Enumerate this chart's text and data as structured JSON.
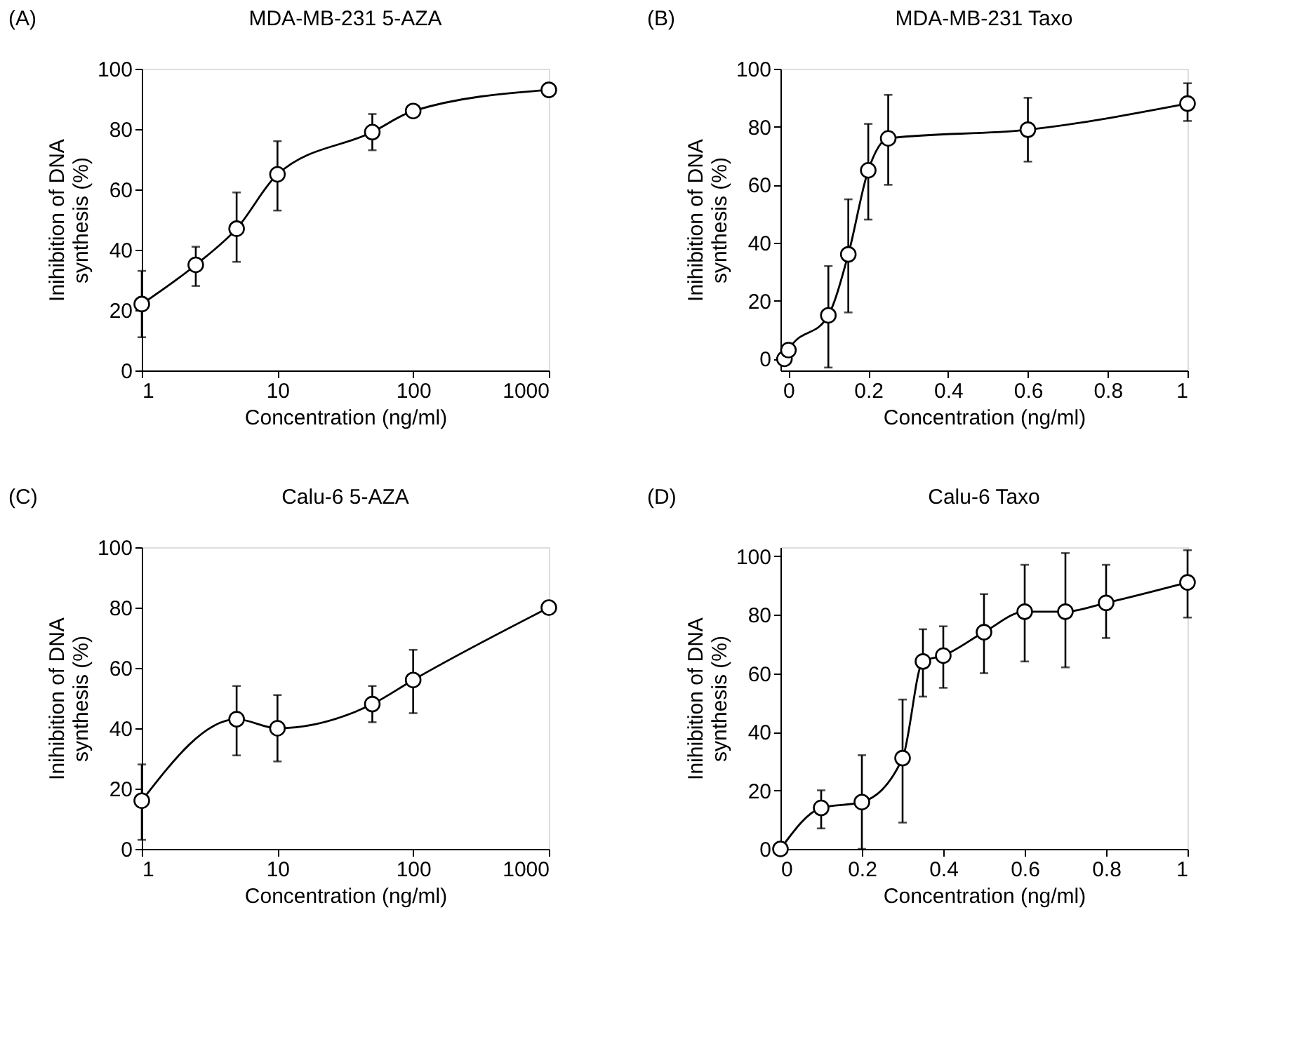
{
  "chart_data": [
    {
      "type": "line",
      "title": "MDA-MB-231 5-AZA",
      "annotations": [
        "(A)"
      ],
      "xlabel": "Concentration (ng/ml)",
      "ylabel": "Inihibition of DNA\nsynthesis (%)",
      "log": "x",
      "marker": "circle",
      "grid": false,
      "x": [
        1,
        2.5,
        5,
        10,
        50,
        100,
        1000
      ],
      "series": [
        {
          "color": "#000000",
          "values": [
            22,
            35,
            47,
            65,
            79,
            86,
            93
          ],
          "errors": [
            [
              11,
              33
            ],
            [
              28,
              41
            ],
            [
              36,
              59
            ],
            [
              53,
              76
            ],
            [
              73,
              85
            ],
            [
              84,
              88
            ],
            null
          ]
        }
      ],
      "xlim": [
        1,
        1000
      ],
      "xticks": [
        1,
        10,
        100,
        1000
      ],
      "ylim": [
        0,
        100
      ],
      "yticks": [
        0,
        20,
        40,
        60,
        80,
        100
      ]
    },
    {
      "type": "line",
      "title": "MDA-MB-231 Taxo",
      "annotations": [
        "(B)"
      ],
      "xlabel": "Concentration (ng/ml)",
      "ylabel": "Inihibition of DNA\nsynthesis (%)",
      "marker": "circle",
      "grid": false,
      "x": [
        -0.01,
        0,
        0.1,
        0.15,
        0.2,
        0.25,
        0.6,
        1
      ],
      "series": [
        {
          "color": "#000000",
          "values": [
            0,
            3,
            15,
            36,
            65,
            76,
            79,
            88
          ],
          "errors": [
            null,
            null,
            [
              -3,
              32
            ],
            [
              16,
              55
            ],
            [
              48,
              81
            ],
            [
              60,
              91
            ],
            [
              68,
              90
            ],
            [
              82,
              95
            ]
          ]
        }
      ],
      "xlim": [
        -0.02,
        1
      ],
      "xticks": [
        0,
        0.2,
        0.4,
        0.6,
        0.8,
        1
      ],
      "ylim": [
        -4,
        100
      ],
      "yticks": [
        0,
        20,
        40,
        60,
        80,
        100
      ]
    },
    {
      "type": "line",
      "title": "Calu-6 5-AZA",
      "annotations": [
        "(C)"
      ],
      "xlabel": "Concentration (ng/ml)",
      "ylabel": "Inihibition of DNA\nsynthesis (%)",
      "log": "x",
      "marker": "circle",
      "grid": false,
      "x": [
        1,
        5,
        10,
        50,
        100,
        1000
      ],
      "series": [
        {
          "color": "#000000",
          "values": [
            16,
            43,
            40,
            48,
            56,
            80
          ],
          "errors": [
            [
              3,
              28
            ],
            [
              31,
              54
            ],
            [
              29,
              51
            ],
            [
              42,
              54
            ],
            [
              45,
              66
            ],
            null
          ]
        }
      ],
      "xlim": [
        1,
        1000
      ],
      "xticks": [
        1,
        10,
        100,
        1000
      ],
      "ylim": [
        0,
        100
      ],
      "yticks": [
        0,
        20,
        40,
        60,
        80,
        100
      ]
    },
    {
      "type": "line",
      "title": "Calu-6 Taxo",
      "annotations": [
        "(D)"
      ],
      "xlabel": "Concentration (ng/ml)",
      "ylabel": "Inihibition of DNA\nsynthesis (%)",
      "marker": "circle",
      "grid": false,
      "x": [
        0,
        0.1,
        0.2,
        0.3,
        0.35,
        0.4,
        0.5,
        0.6,
        0.7,
        0.8,
        1
      ],
      "series": [
        {
          "color": "#000000",
          "values": [
            0,
            14,
            16,
            31,
            64,
            66,
            74,
            81,
            81,
            84,
            91
          ],
          "errors": [
            null,
            [
              7,
              20
            ],
            [
              0,
              32
            ],
            [
              9,
              51
            ],
            [
              52,
              75
            ],
            [
              55,
              76
            ],
            [
              60,
              87
            ],
            [
              64,
              97
            ],
            [
              62,
              101
            ],
            [
              72,
              97
            ],
            [
              79,
              102
            ]
          ]
        }
      ],
      "xlim": [
        0,
        1
      ],
      "xticks": [
        0,
        0.2,
        0.4,
        0.6,
        0.8,
        1
      ],
      "ylim": [
        0,
        103
      ],
      "yticks": [
        0,
        20,
        40,
        60,
        80,
        100
      ]
    }
  ]
}
